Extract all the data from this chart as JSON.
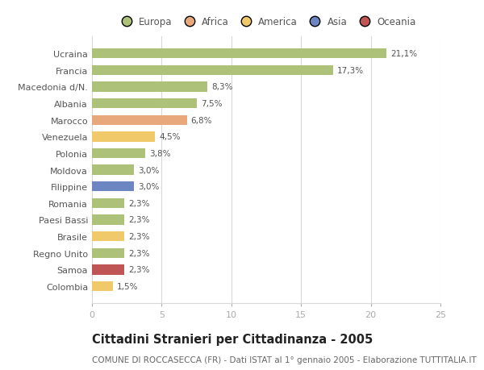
{
  "categories": [
    "Ucraina",
    "Francia",
    "Macedonia d/N.",
    "Albania",
    "Marocco",
    "Venezuela",
    "Polonia",
    "Moldova",
    "Filippine",
    "Romania",
    "Paesi Bassi",
    "Brasile",
    "Regno Unito",
    "Samoa",
    "Colombia"
  ],
  "values": [
    21.1,
    17.3,
    8.3,
    7.5,
    6.8,
    4.5,
    3.8,
    3.0,
    3.0,
    2.3,
    2.3,
    2.3,
    2.3,
    2.3,
    1.5
  ],
  "bar_colors": [
    "#adc178",
    "#adc178",
    "#adc178",
    "#adc178",
    "#e8a87c",
    "#f0c96a",
    "#adc178",
    "#adc178",
    "#6b86c0",
    "#adc178",
    "#adc178",
    "#f0c96a",
    "#adc178",
    "#c05555",
    "#f0c96a"
  ],
  "labels": [
    "21,1%",
    "17,3%",
    "8,3%",
    "7,5%",
    "6,8%",
    "4,5%",
    "3,8%",
    "3,0%",
    "3,0%",
    "2,3%",
    "2,3%",
    "2,3%",
    "2,3%",
    "2,3%",
    "1,5%"
  ],
  "legend_labels": [
    "Europa",
    "Africa",
    "America",
    "Asia",
    "Oceania"
  ],
  "legend_colors": [
    "#adc178",
    "#e8a87c",
    "#f0c96a",
    "#6b86c0",
    "#c05555"
  ],
  "title": "Cittadini Stranieri per Cittadinanza - 2005",
  "subtitle": "COMUNE DI ROCCASECCA (FR) - Dati ISTAT al 1° gennaio 2005 - Elaborazione TUTTITALIA.IT",
  "xlim": [
    0,
    25
  ],
  "xticks": [
    0,
    5,
    10,
    15,
    20,
    25
  ],
  "background_color": "#ffffff",
  "grid_color": "#d8d8d8",
  "bar_height": 0.6,
  "title_fontsize": 10.5,
  "subtitle_fontsize": 7.5,
  "label_fontsize": 7.5,
  "tick_fontsize": 8,
  "legend_fontsize": 8.5
}
